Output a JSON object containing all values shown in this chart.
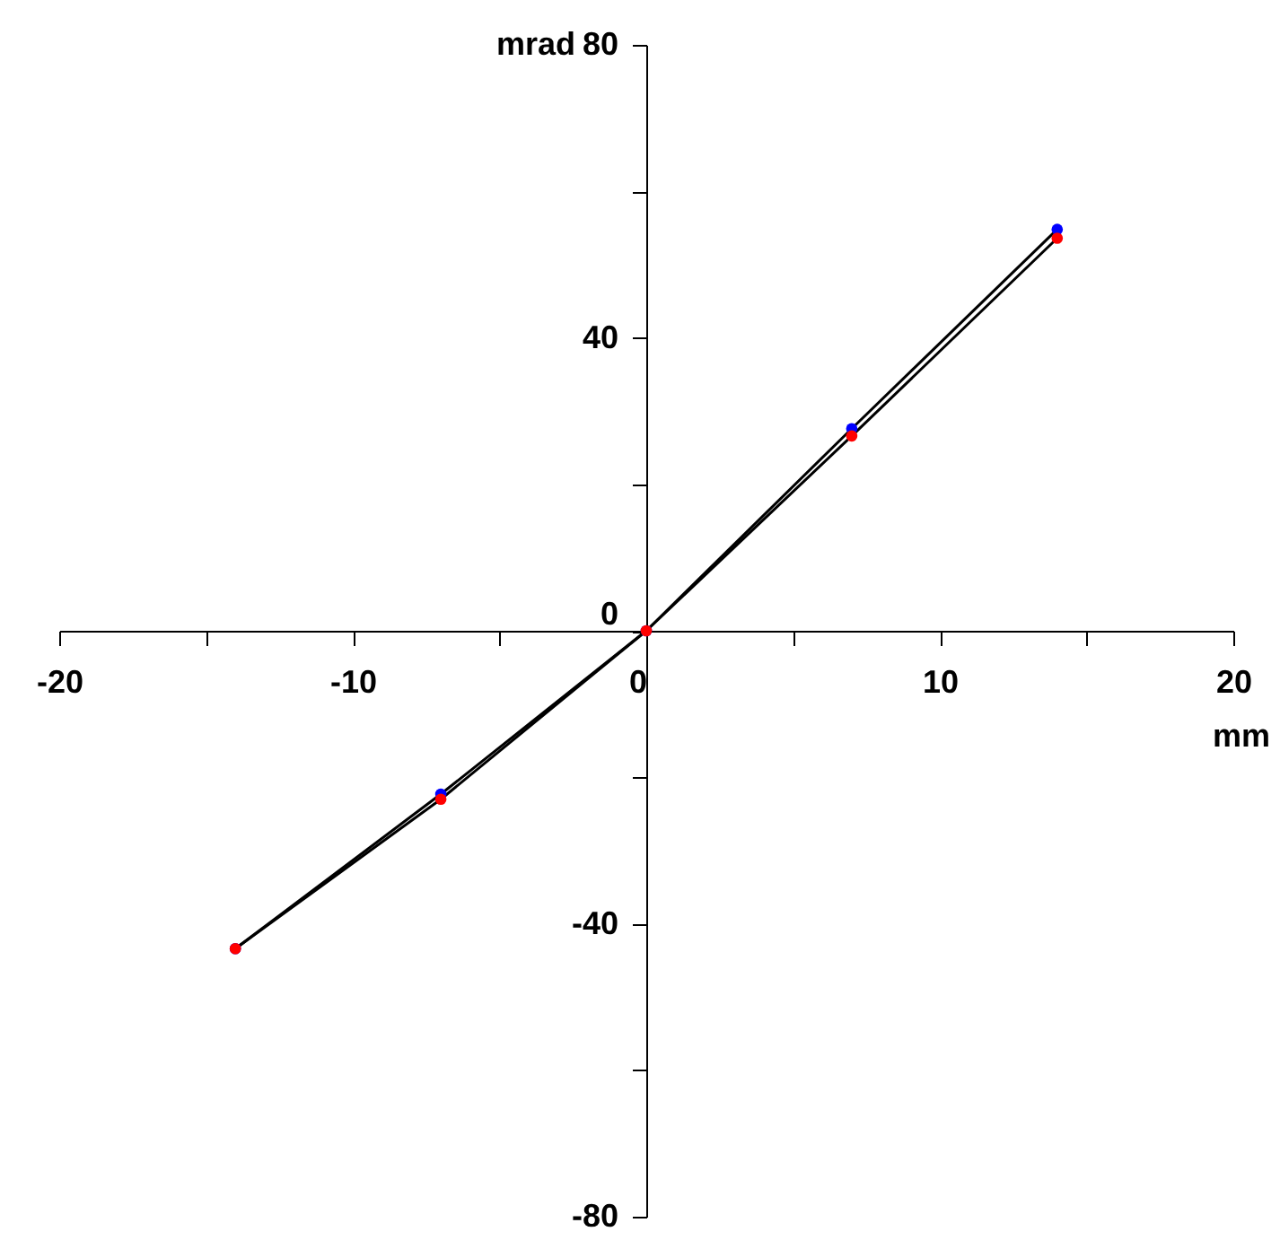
{
  "chart_data": {
    "type": "line",
    "xlabel": "mm",
    "ylabel": "mrad",
    "x": [
      -14,
      -7,
      0,
      7,
      14
    ],
    "series": [
      {
        "color": "#0000ff",
        "values": [
          -43.4,
          -22.3,
          0,
          27.6,
          54.8
        ]
      },
      {
        "color": "#ff0000",
        "values": [
          -43.4,
          -23,
          0,
          26.6,
          53.6
        ]
      }
    ],
    "xlim": [
      -20,
      20
    ],
    "ylim": [
      -80,
      80
    ],
    "xticks": [
      -20,
      {
        "value": -15,
        "label": null
      },
      -10,
      {
        "value": -5,
        "label": null
      },
      0,
      {
        "value": 5,
        "label": null
      },
      10,
      {
        "value": 15,
        "label": null
      },
      20
    ],
    "yticks": [
      -80,
      {
        "value": -60,
        "label": null
      },
      -40,
      {
        "value": -20,
        "label": null
      },
      0,
      {
        "value": 20,
        "label": null
      },
      40,
      {
        "value": 60,
        "label": null
      },
      80
    ],
    "marker": "circle",
    "line_style": "solid",
    "grid": false
  }
}
